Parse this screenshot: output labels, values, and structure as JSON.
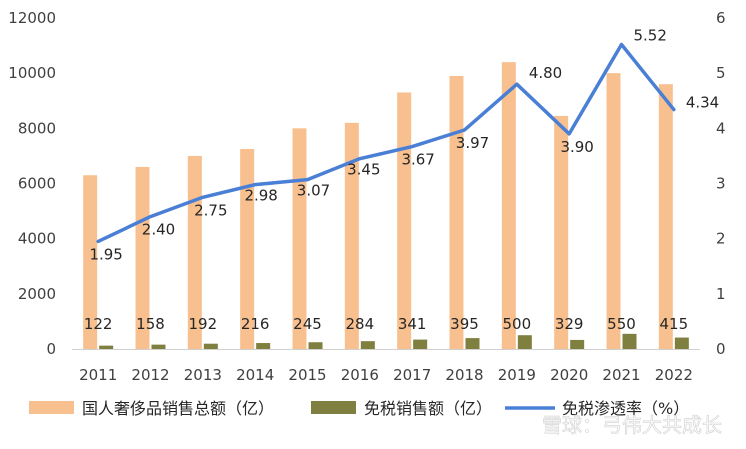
{
  "chart_data": {
    "type": "bar",
    "categories": [
      "2011",
      "2012",
      "2013",
      "2014",
      "2015",
      "2016",
      "2017",
      "2018",
      "2019",
      "2020",
      "2021",
      "2022"
    ],
    "series": [
      {
        "name": "国人奢侈品销售总额（亿）",
        "type": "bar",
        "axis": "left",
        "color": "#F8C08F",
        "values": [
          6300,
          6600,
          7000,
          7250,
          8000,
          8200,
          9300,
          9900,
          10400,
          8450,
          10000,
          9600
        ]
      },
      {
        "name": "免税销售额（亿）",
        "type": "bar",
        "axis": "left",
        "color": "#7F7F3F",
        "values": [
          122,
          158,
          192,
          216,
          245,
          284,
          341,
          395,
          500,
          329,
          550,
          415
        ]
      },
      {
        "name": "免税渗透率（%）",
        "type": "line",
        "axis": "right",
        "color": "#4A7FD6",
        "values": [
          1.95,
          2.4,
          2.75,
          2.98,
          3.07,
          3.45,
          3.67,
          3.97,
          4.8,
          3.9,
          5.52,
          4.34
        ]
      }
    ],
    "y_left": {
      "min": 0,
      "max": 12000,
      "ticks": [
        0,
        2000,
        4000,
        6000,
        8000,
        10000,
        12000
      ]
    },
    "y_right": {
      "min": 0,
      "max": 6,
      "ticks": [
        0,
        1,
        2,
        3,
        4,
        5,
        6
      ]
    },
    "duty_free_labels": [
      "122",
      "158",
      "192",
      "216",
      "245",
      "284",
      "341",
      "395",
      "500",
      "329",
      "550",
      "415"
    ],
    "rate_labels": [
      "1.95",
      "2.40",
      "2.75",
      "2.98",
      "3.07",
      "3.45",
      "3.67",
      "3.97",
      "4.80",
      "3.90",
      "5.52",
      "4.34"
    ],
    "legend_position": "bottom",
    "grid": false
  },
  "watermark": "雪球：弓伟大共成长"
}
